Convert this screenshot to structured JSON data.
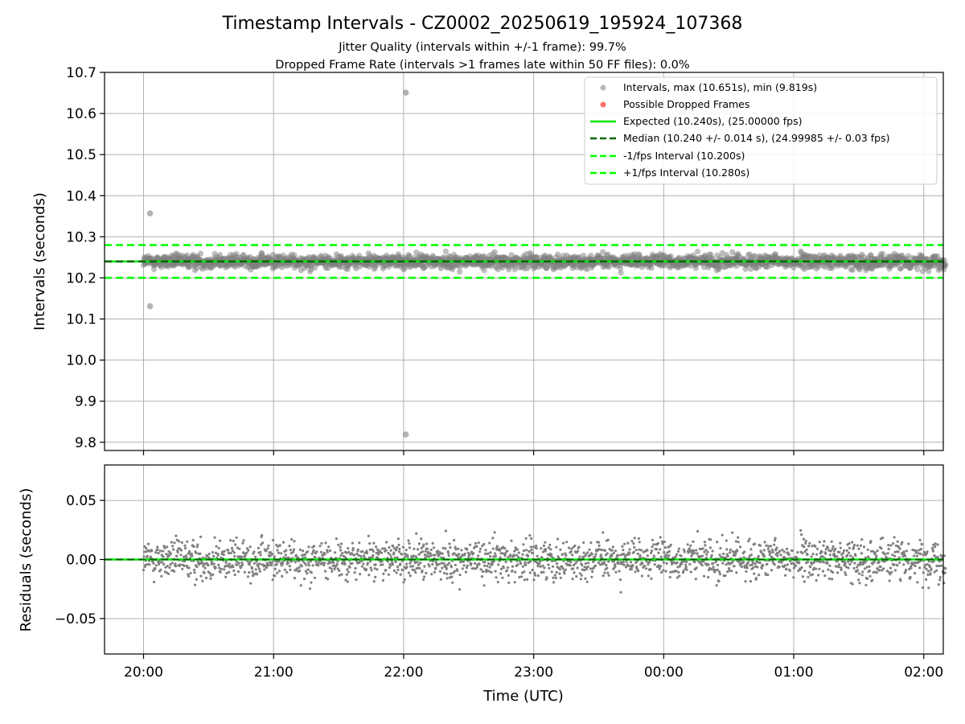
{
  "figure": {
    "title": "Timestamp Intervals - CZ0002_20250619_195924_107368",
    "subtitle_1": "Jitter Quality (intervals within +/-1 frame): 99.7%",
    "subtitle_2": "Dropped Frame Rate (intervals >1 frames late within 50 FF files): 0.0%"
  },
  "colors": {
    "points": "#808080",
    "dropped": "#ff4d4d",
    "expected": "#00e600",
    "median": "#006400",
    "interval_lines": "#00ff00",
    "grid": "#b0b0b0"
  },
  "chart_data": [
    {
      "type": "scatter",
      "name": "intervals",
      "ylabel": "Intervals (seconds)",
      "xlabel": "",
      "ylim": [
        9.78,
        10.7
      ],
      "xlim_hours": [
        19.7,
        26.15
      ],
      "yticks": [
        "10.7",
        "10.6",
        "10.5",
        "10.4",
        "10.3",
        "10.2",
        "10.1",
        "10.0",
        "9.9",
        "9.8"
      ],
      "grid": true,
      "legend_position": "top-right",
      "legend": [
        "Intervals, max (10.651s), min (9.819s)",
        "Possible Dropped Frames",
        "Expected (10.240s), (25.00000 fps)",
        "Median (10.240 +/- 0.014 s), (24.99985 +/- 0.03 fps)",
        "-1/fps Interval (10.200s)",
        "+1/fps Interval (10.280s)"
      ],
      "reference_lines": {
        "expected": 10.24,
        "median": 10.24,
        "minus_one_fps": 10.2,
        "plus_one_fps": 10.28
      },
      "band": {
        "center": 10.24,
        "spread": 0.014,
        "min": 10.195,
        "max": 10.282
      },
      "start_time": "20:00",
      "end_time": "02:10",
      "outliers": [
        {
          "time": "20:03",
          "value": 10.357
        },
        {
          "time": "20:03",
          "value": 10.131
        },
        {
          "time": "22:01",
          "value": 10.651
        },
        {
          "time": "22:01",
          "value": 9.819
        }
      ]
    },
    {
      "type": "scatter",
      "name": "residuals",
      "ylabel": "Residuals (seconds)",
      "xlabel": "Time (UTC)",
      "ylim": [
        -0.08,
        0.08
      ],
      "yticks": [
        "0.05",
        "0.00",
        "−0.05"
      ],
      "grid": true,
      "reference_lines": {
        "zero": 0.0
      },
      "band": {
        "spread": 0.014,
        "max_abs": 0.045
      },
      "x_tick_labels": [
        "20:00",
        "21:00",
        "22:00",
        "23:00",
        "00:00",
        "01:00",
        "02:00"
      ]
    }
  ]
}
